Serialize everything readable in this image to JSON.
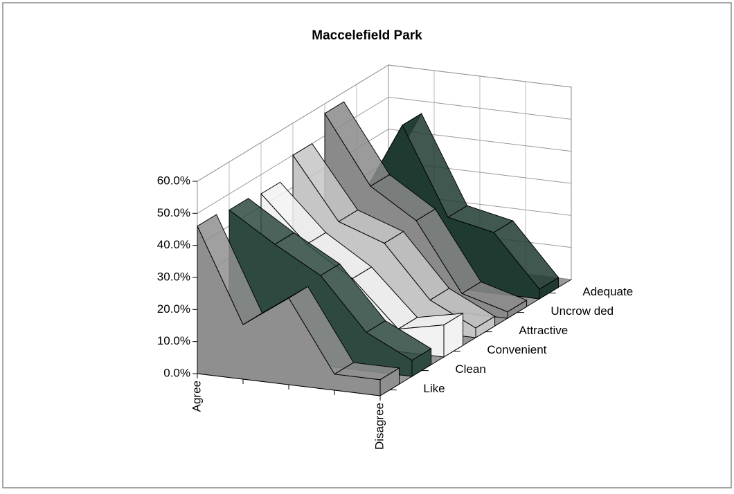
{
  "chart_data": {
    "type": "area3d",
    "title": "Maccelefield Park",
    "categories": [
      "Agree",
      null,
      null,
      null,
      "Disagree"
    ],
    "series": [
      {
        "name": "Like",
        "color": "#8f8f8f",
        "values": [
          46,
          17,
          27,
          5,
          5
        ]
      },
      {
        "name": "Clean",
        "color": "#2e4a40",
        "values": [
          45,
          36,
          28,
          12,
          5
        ]
      },
      {
        "name": "Convenient",
        "color": "#f2f2f2",
        "values": [
          44,
          30,
          21,
          7,
          10
        ]
      },
      {
        "name": "Attractive",
        "color": "#c6c6c6",
        "values": [
          50,
          31,
          26,
          10,
          3
        ]
      },
      {
        "name": "Uncrow ded",
        "color": "#8a8a8a",
        "values": [
          57,
          36,
          27,
          6,
          2
        ]
      },
      {
        "name": "Adequate",
        "color": "#1f3b31",
        "values": [
          22,
          49,
          22,
          19,
          3
        ]
      }
    ],
    "ylim": [
      0,
      60
    ],
    "yticks": [
      {
        "value": 0,
        "label": "0.0%"
      },
      {
        "value": 10,
        "label": "10.0%"
      },
      {
        "value": 20,
        "label": "20.0%"
      },
      {
        "value": 30,
        "label": "30.0%"
      },
      {
        "value": 40,
        "label": "40.0%"
      },
      {
        "value": 50,
        "label": "50.0%"
      },
      {
        "value": 60,
        "label": "60.0%"
      }
    ],
    "grid": true
  }
}
